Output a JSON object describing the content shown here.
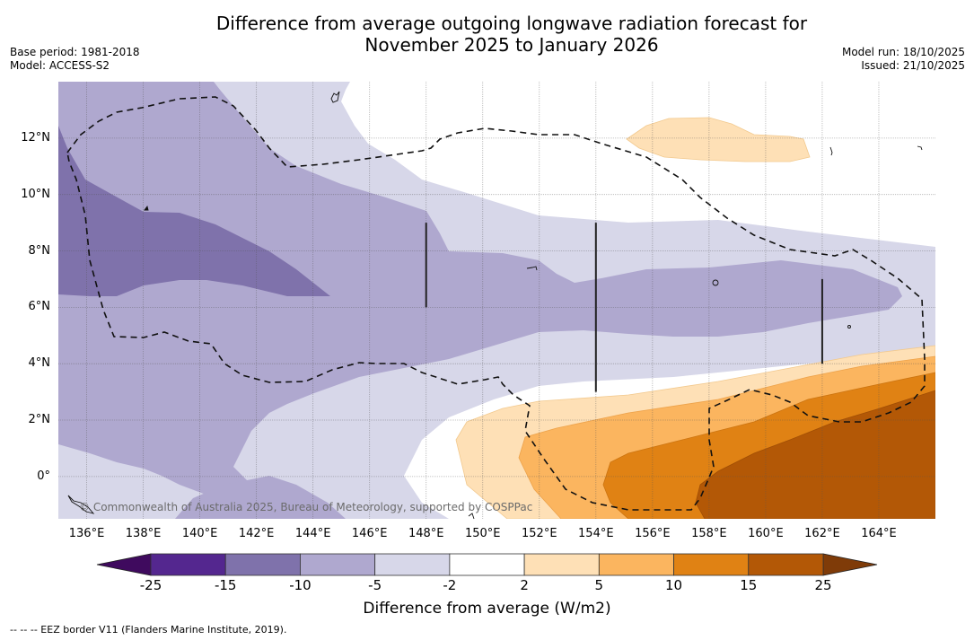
{
  "header": {
    "title_line1": "Difference from average outgoing longwave radiation forecast for",
    "title_line2": "November 2025 to January 2026",
    "base_period": "Base period: 1981-2018",
    "model": "Model: ACCESS-S2",
    "model_run": "Model run: 18/10/2025",
    "issued": "Issued: 21/10/2025"
  },
  "map": {
    "copyright": "© Commonwealth of Australia 2025, Bureau of Meteorology, supported by COSPPac",
    "extent": {
      "lon_min": 135,
      "lon_max": 166,
      "lat_min": -1.5,
      "lat_max": 14
    },
    "lat_ticks": [
      {
        "value": 12,
        "label": "12°N"
      },
      {
        "value": 10,
        "label": "10°N"
      },
      {
        "value": 8,
        "label": "8°N"
      },
      {
        "value": 6,
        "label": "6°N"
      },
      {
        "value": 4,
        "label": "4°N"
      },
      {
        "value": 2,
        "label": "2°N"
      },
      {
        "value": 0,
        "label": "0°"
      }
    ],
    "lon_ticks": [
      {
        "value": 136,
        "label": "136°E"
      },
      {
        "value": 138,
        "label": "138°E"
      },
      {
        "value": 140,
        "label": "140°E"
      },
      {
        "value": 142,
        "label": "142°E"
      },
      {
        "value": 144,
        "label": "144°E"
      },
      {
        "value": 146,
        "label": "146°E"
      },
      {
        "value": 148,
        "label": "148°E"
      },
      {
        "value": 150,
        "label": "150°E"
      },
      {
        "value": 152,
        "label": "152°E"
      },
      {
        "value": 154,
        "label": "154°E"
      },
      {
        "value": 156,
        "label": "156°E"
      },
      {
        "value": 158,
        "label": "158°E"
      },
      {
        "value": 160,
        "label": "160°E"
      },
      {
        "value": 162,
        "label": "162°E"
      },
      {
        "value": 164,
        "label": "164°E"
      }
    ],
    "boundary_lines": [
      {
        "lon": 148,
        "lat_from": 6,
        "lat_to": 9
      },
      {
        "lon": 154,
        "lat_from": 3,
        "lat_to": 9
      },
      {
        "lon": 162,
        "lat_from": 4,
        "lat_to": 7
      }
    ]
  },
  "colorbar": {
    "title": "Difference from average (W/m2)",
    "ticks": [
      "-25",
      "-15",
      "-10",
      "-5",
      "-2",
      "2",
      "5",
      "10",
      "15",
      "25"
    ],
    "colors": {
      "lt_-25": "#3f0a5e",
      "-25_-15": "#54278f",
      "-15_-10": "#7f72ab",
      "-10_-5": "#afa8cf",
      "-5_-2": "#d7d7e9",
      "-2_2": "#ffffff",
      "2_5": "#fee0b6",
      "5_10": "#fbb55f",
      "10_15": "#e08214",
      "15_25": "#b35806",
      "gt_25": "#7f3b08"
    }
  },
  "footer": {
    "eez_note": "--  --  -- EEZ border V11 (Flanders Marine Institute, 2019)."
  }
}
